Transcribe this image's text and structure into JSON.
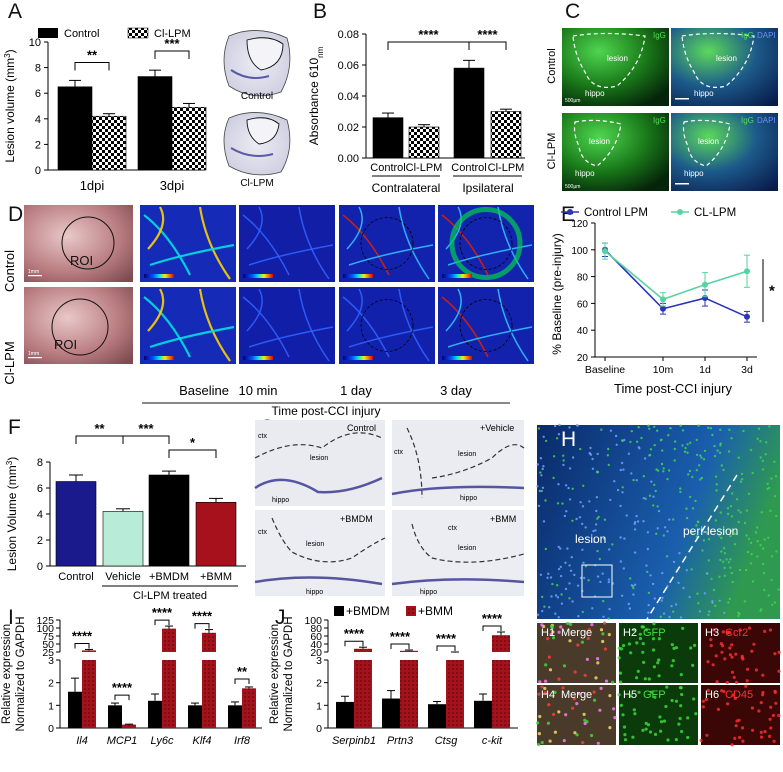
{
  "panels": {
    "A": {
      "label": "A",
      "ylabel": "Lesion volume (mm",
      "ylabel_sup": "3",
      "ylabel_close": ")",
      "legend": [
        "Control",
        "Cl-LPM"
      ],
      "ticks": [
        "0",
        "2",
        "4",
        "6",
        "8",
        "10"
      ],
      "sig": [
        "**",
        "***"
      ],
      "img_labels": [
        "Control",
        "Cl-LPM"
      ]
    },
    "B": {
      "label": "B",
      "ylabel": "Absorbance 610",
      "ylabel_sub": "nm",
      "ticks": [
        "0.00",
        "0.02",
        "0.04",
        "0.06",
        "0.08"
      ],
      "sig": [
        "****",
        "****"
      ],
      "groups": [
        "Contralateral",
        "Ipsilateral"
      ]
    },
    "C": {
      "label": "C",
      "rows": [
        "Control",
        "Cl-LPM"
      ],
      "tags": [
        "IgG",
        "IgG",
        "DAPI",
        "lesion",
        "hippo",
        "500µm"
      ]
    },
    "D": {
      "label": "D",
      "rows": [
        "Control",
        "Cl-LPM"
      ],
      "cols": [
        "Baseline",
        "10 min",
        "1 day",
        "3 day"
      ],
      "xlabel": "Time post-CCI injury",
      "roi": "ROI",
      "scale": "1mm"
    },
    "E": {
      "label": "E",
      "ylabel": "% Baseline (pre-injury)",
      "xlabel": "Time post-CCI injury",
      "ticks": [
        "20",
        "40",
        "60",
        "80",
        "100",
        "120"
      ],
      "sig": "*"
    },
    "F": {
      "label": "F",
      "ylabel": "Lesion Volume (mm",
      "ylabel_sup": "3",
      "ylabel_close": ")",
      "ticks": [
        "0",
        "2",
        "4",
        "6",
        "8"
      ],
      "sig": [
        "**",
        "***",
        "*"
      ],
      "group_label": "Cl-LPM treated"
    },
    "G": {
      "label": "G",
      "tags": [
        "Control",
        "+Vehicle",
        "+BMDM",
        "+BMM",
        "ctx",
        "lesion",
        "hippo"
      ]
    },
    "H": {
      "label": "H",
      "tags": [
        "lesion",
        "peri-lesion"
      ],
      "sub": [
        {
          "id": "H1",
          "name": "Merge",
          "color": "#ffffff"
        },
        {
          "id": "H2",
          "name": "GFP",
          "color": "#3fe03f"
        },
        {
          "id": "H3",
          "name": "Ccr2",
          "color": "#ff3030"
        },
        {
          "id": "H4",
          "name": "Merge",
          "color": "#ffffff"
        },
        {
          "id": "H5",
          "name": "GFP",
          "color": "#3fe03f"
        },
        {
          "id": "H6",
          "name": "CD45",
          "color": "#ff3030"
        }
      ]
    },
    "I": {
      "label": "I",
      "ylabel1": "Relative expression",
      "ylabel2": "Normalized to GAPDH",
      "ticks_low": [
        "0",
        "1",
        "2",
        "3"
      ],
      "ticks_high": [
        "25",
        "50",
        "75",
        "100",
        "125"
      ],
      "sig": [
        "****",
        "****",
        "****",
        "****",
        "**"
      ]
    },
    "J": {
      "label": "J",
      "ylabel1": "Relative expression",
      "ylabel2": "Normalized to GAPDH",
      "legend": [
        "+BMDM",
        "+BMM"
      ],
      "ticks_low": [
        "0",
        "1",
        "2",
        "3"
      ],
      "ticks_high": [
        "20",
        "40",
        "60",
        "80",
        "100"
      ],
      "sig": [
        "****",
        "****",
        "****",
        "****"
      ]
    }
  },
  "chart_data": [
    {
      "type": "bar",
      "panel": "A",
      "categories": [
        "1dpi",
        "3dpi"
      ],
      "series": [
        {
          "name": "Control",
          "values": [
            6.5,
            7.3
          ],
          "err": [
            0.5,
            0.5
          ]
        },
        {
          "name": "Cl-LPM",
          "values": [
            4.2,
            4.9
          ],
          "err": [
            0.2,
            0.3
          ]
        }
      ],
      "ylabel": "Lesion volume (mm3)",
      "ylim": [
        0,
        10
      ]
    },
    {
      "type": "bar",
      "panel": "B",
      "categories": [
        "Control",
        "Cl-LPM",
        "Control",
        "Cl-LPM"
      ],
      "values": [
        0.026,
        0.02,
        0.058,
        0.03
      ],
      "err": [
        0.003,
        0.0015,
        0.005,
        0.0015
      ],
      "groups": [
        "Contralateral",
        "Ipsilateral"
      ],
      "ylabel": "Absorbance 610nm",
      "ylim": [
        0,
        0.08
      ]
    },
    {
      "type": "line",
      "panel": "E",
      "x": [
        "Baseline",
        "10m",
        "1d",
        "3d"
      ],
      "series": [
        {
          "name": "Control LPM",
          "color": "#2b35b5",
          "values": [
            100,
            56,
            64,
            50
          ],
          "err": [
            5,
            4,
            6,
            4
          ]
        },
        {
          "name": "CL-LPM",
          "color": "#56d3a2",
          "values": [
            99,
            63,
            74,
            84
          ],
          "err": [
            6,
            5,
            9,
            12
          ]
        }
      ],
      "ylabel": "% Baseline (pre-injury)",
      "xlabel": "Time post-CCI injury",
      "ylim": [
        20,
        120
      ]
    },
    {
      "type": "bar",
      "panel": "F",
      "categories": [
        "Control",
        "Vehicle",
        "+BMDM",
        "+BMM"
      ],
      "values": [
        6.5,
        4.2,
        7.0,
        4.9
      ],
      "err": [
        0.5,
        0.2,
        0.3,
        0.3
      ],
      "colors": [
        "#1a1a8c",
        "#b8ecd8",
        "#000000",
        "#a5121b"
      ],
      "ylabel": "Lesion Volume (mm3)",
      "ylim": [
        0,
        8
      ]
    },
    {
      "type": "bar",
      "panel": "I",
      "categories": [
        "Il4",
        "MCP1",
        "Ly6c",
        "Klf4",
        "Irf8"
      ],
      "series": [
        {
          "name": "+BMDM",
          "values": [
            1.6,
            1.0,
            1.2,
            1.0,
            1.0
          ],
          "err": [
            0.6,
            0.1,
            0.3,
            0.1,
            0.15
          ]
        },
        {
          "name": "+BMM",
          "values": [
            30,
            0.15,
            98,
            85,
            1.75
          ],
          "err": [
            3,
            0.02,
            8,
            10,
            0.06
          ]
        }
      ],
      "ylabel": "Relative expression Normalized to GAPDH"
    },
    {
      "type": "bar",
      "panel": "J",
      "categories": [
        "Serpinb1",
        "Prtn3",
        "Ctsg",
        "c-kit"
      ],
      "series": [
        {
          "name": "+BMDM",
          "values": [
            1.15,
            1.3,
            1.05,
            1.2
          ],
          "err": [
            0.25,
            0.35,
            0.12,
            0.3
          ]
        },
        {
          "name": "+BMM",
          "values": [
            28,
            23,
            18,
            62
          ],
          "err": [
            4,
            2,
            2,
            8
          ]
        }
      ],
      "ylabel": "Relative expression Normalized to GAPDH"
    }
  ],
  "colors": {
    "black_bar": "#000000",
    "bmm_red": "#a5121b",
    "control_blue": "#1a1a8c",
    "vehicle_mint": "#b8ecd8",
    "line_blue": "#2b35b5",
    "line_green": "#56d3a2"
  }
}
